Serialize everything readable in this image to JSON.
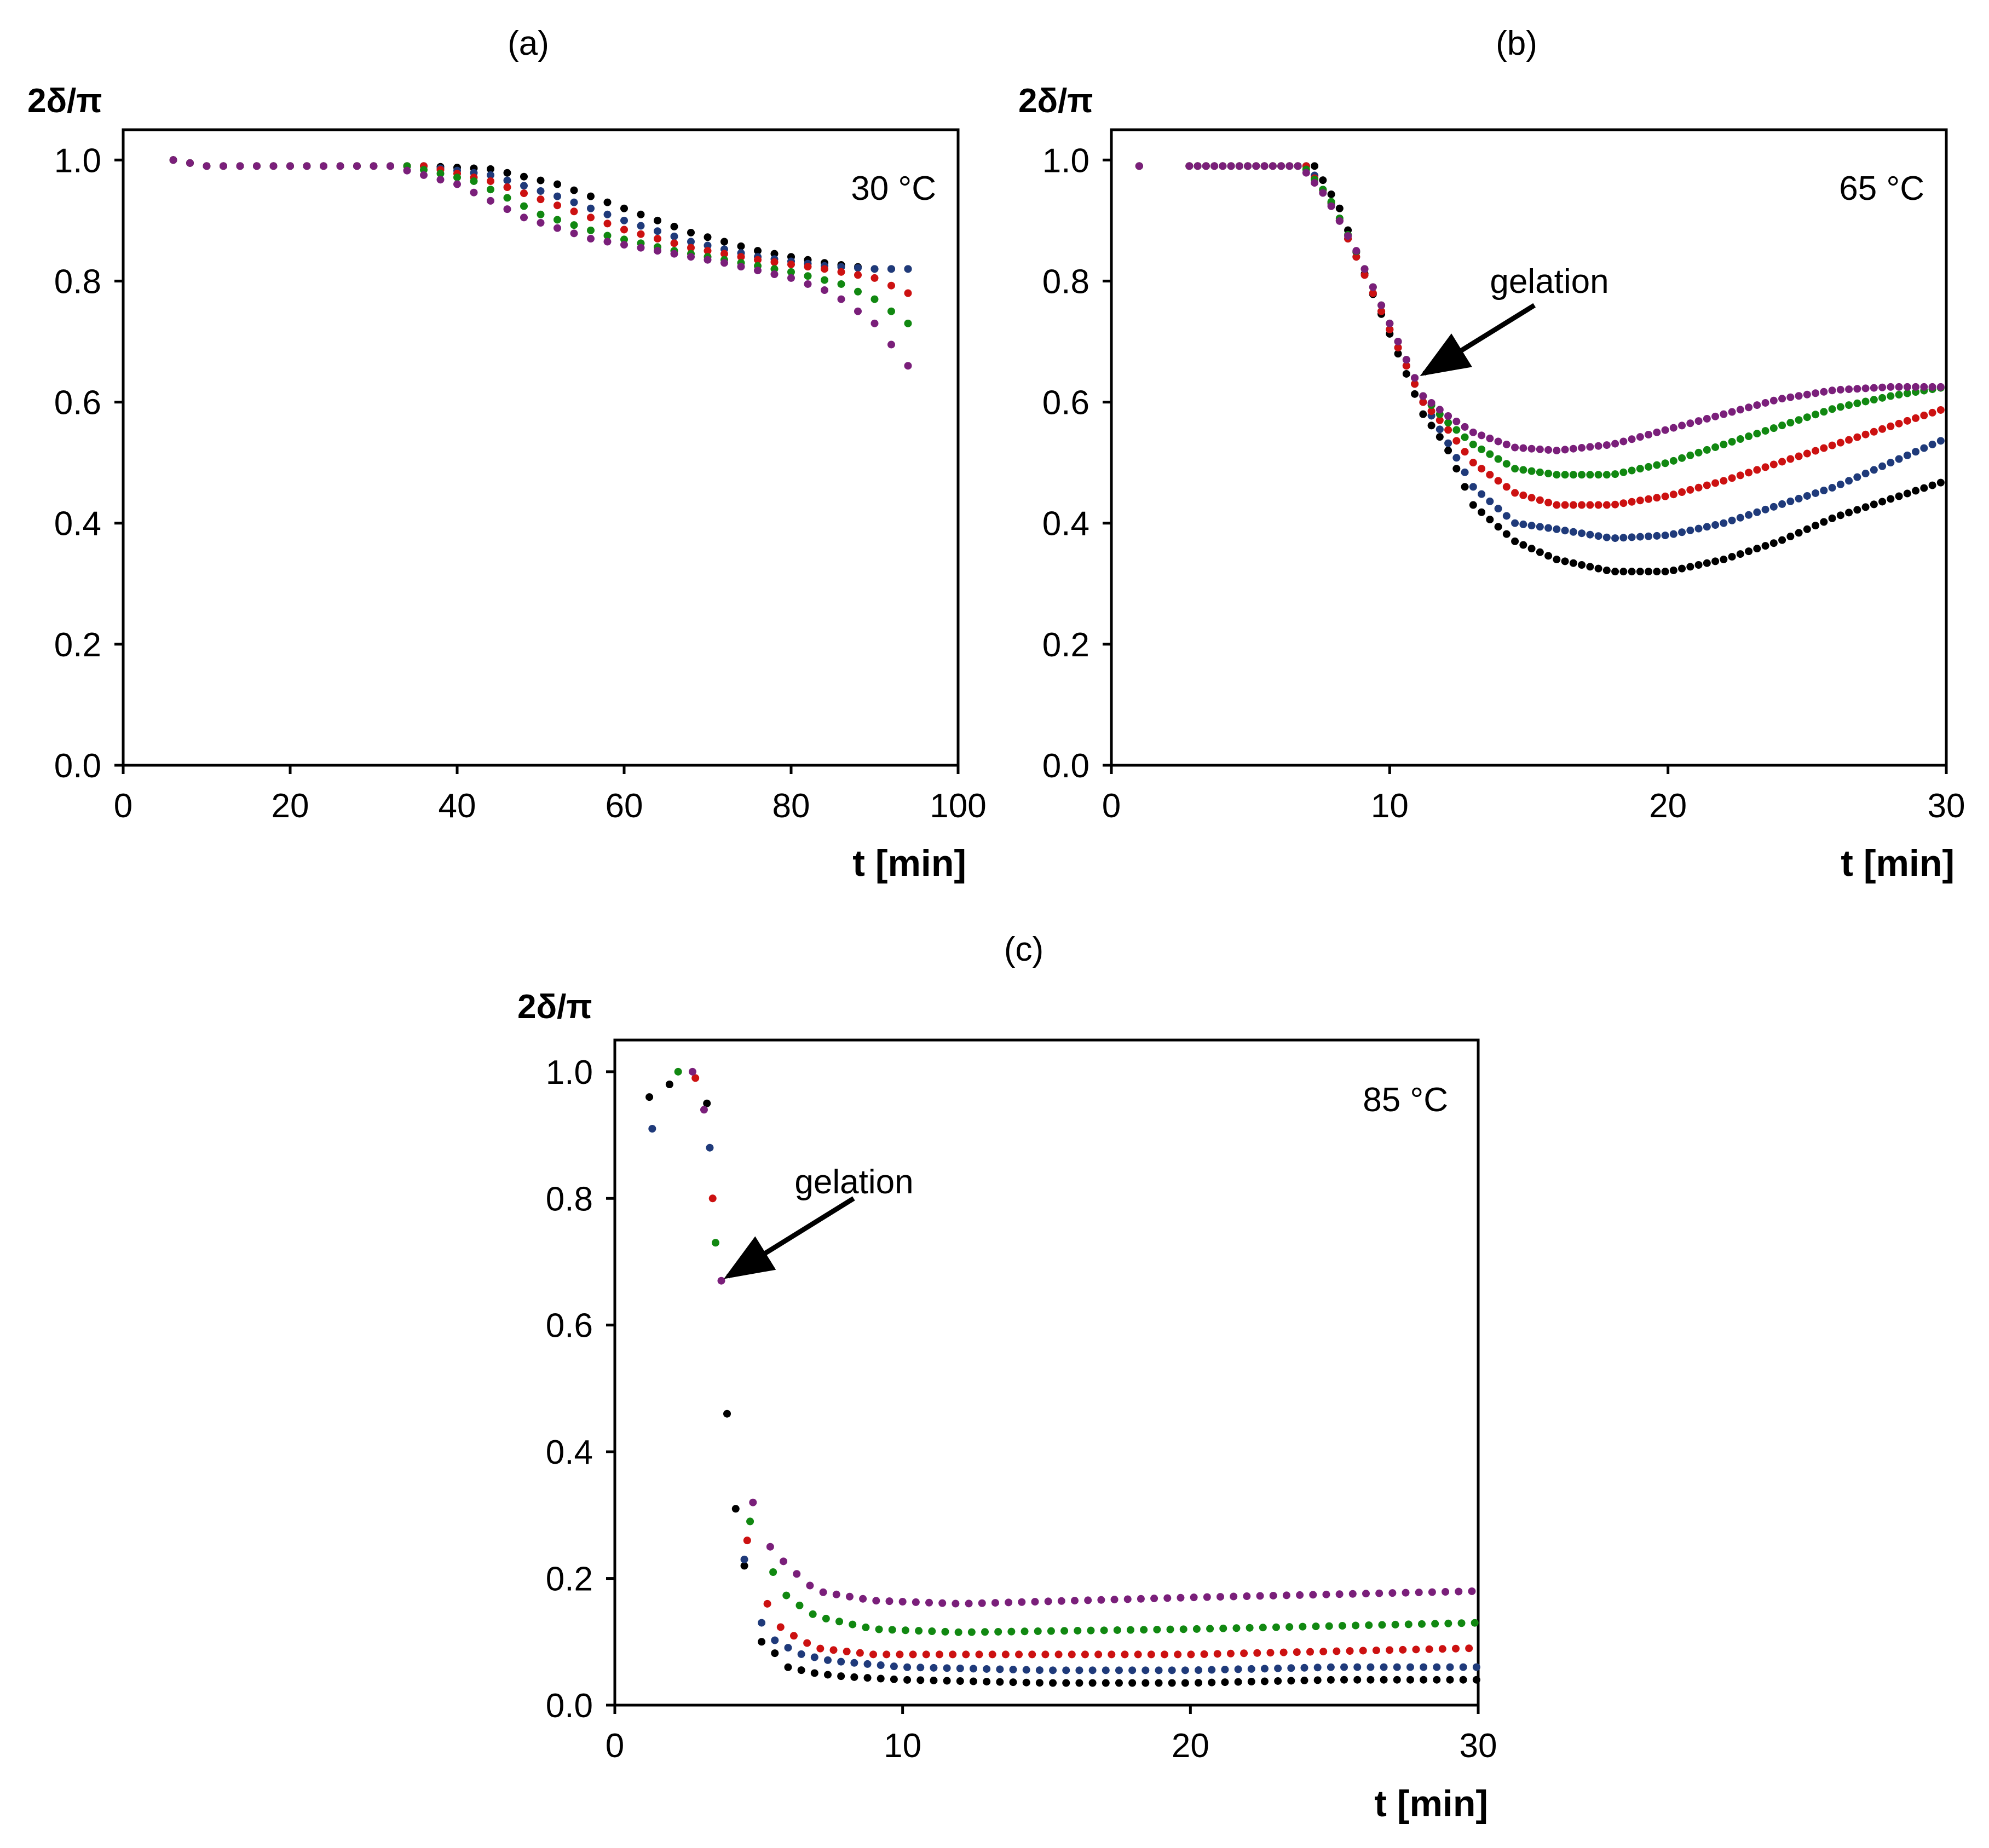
{
  "figure": {
    "panels": [
      "a",
      "b",
      "c"
    ]
  },
  "chart_data": [
    {
      "type": "scatter",
      "panel_label": "(a)",
      "ylabel": "2δ/π",
      "xlabel": "t [min]",
      "temperature": "30 °C",
      "xlim": [
        0,
        100
      ],
      "ylim": [
        0,
        1.05
      ],
      "xticks": [
        "0",
        "20",
        "40",
        "60",
        "80",
        "100"
      ],
      "yticks": [
        "0.0",
        "0.2",
        "0.4",
        "0.6",
        "0.8",
        "1.0"
      ],
      "xtick_values": [
        0,
        20,
        40,
        60,
        80,
        100
      ],
      "ytick_values": [
        0,
        0.2,
        0.4,
        0.6,
        0.8,
        1.0
      ],
      "series_params": {
        "t_start": 6,
        "t_end": 95,
        "step": 2
      },
      "series": [
        {
          "name": "black",
          "color": "#000000",
          "points": [
            [
              6,
              1.0
            ],
            [
              10,
              0.99
            ],
            [
              36,
              0.99
            ],
            [
              44,
              0.985
            ],
            [
              52,
              0.96
            ],
            [
              60,
              0.92
            ],
            [
              68,
              0.88
            ],
            [
              76,
              0.85
            ],
            [
              84,
              0.83
            ],
            [
              90,
              0.82
            ],
            [
              94,
              0.82
            ]
          ]
        },
        {
          "name": "navy",
          "color": "#1f3a7a",
          "points": [
            [
              6,
              1.0
            ],
            [
              10,
              0.99
            ],
            [
              36,
              0.99
            ],
            [
              44,
              0.975
            ],
            [
              52,
              0.94
            ],
            [
              60,
              0.9
            ],
            [
              68,
              0.865
            ],
            [
              76,
              0.84
            ],
            [
              84,
              0.825
            ],
            [
              90,
              0.82
            ],
            [
              95,
              0.82
            ]
          ]
        },
        {
          "name": "red",
          "color": "#cc1111",
          "points": [
            [
              6,
              1.0
            ],
            [
              10,
              0.99
            ],
            [
              36,
              0.99
            ],
            [
              44,
              0.965
            ],
            [
              52,
              0.925
            ],
            [
              60,
              0.885
            ],
            [
              68,
              0.855
            ],
            [
              76,
              0.835
            ],
            [
              84,
              0.82
            ],
            [
              90,
              0.805
            ],
            [
              94,
              0.78
            ]
          ]
        },
        {
          "name": "green",
          "color": "#118811",
          "points": [
            [
              6,
              1.0
            ],
            [
              10,
              0.99
            ],
            [
              34,
              0.99
            ],
            [
              42,
              0.965
            ],
            [
              50,
              0.91
            ],
            [
              58,
              0.875
            ],
            [
              66,
              0.85
            ],
            [
              74,
              0.83
            ],
            [
              80,
              0.815
            ],
            [
              86,
              0.795
            ],
            [
              90,
              0.77
            ],
            [
              94,
              0.73
            ]
          ]
        },
        {
          "name": "purple",
          "color": "#7a1f7a",
          "points": [
            [
              6,
              1.0
            ],
            [
              10,
              0.99
            ],
            [
              32,
              0.99
            ],
            [
              40,
              0.96
            ],
            [
              48,
              0.905
            ],
            [
              56,
              0.87
            ],
            [
              64,
              0.85
            ],
            [
              72,
              0.83
            ],
            [
              80,
              0.805
            ],
            [
              85,
              0.78
            ],
            [
              90,
              0.73
            ],
            [
              94,
              0.66
            ]
          ]
        }
      ]
    },
    {
      "type": "scatter",
      "panel_label": "(b)",
      "ylabel": "2δ/π",
      "xlabel": "t [min]",
      "temperature": "65 °C",
      "annotation": "gelation",
      "annotation_target": [
        11.0,
        0.64
      ],
      "annotation_from": [
        15.2,
        0.76
      ],
      "xlim": [
        0,
        30
      ],
      "ylim": [
        0,
        1.05
      ],
      "xticks": [
        "0",
        "10",
        "20",
        "30"
      ],
      "yticks": [
        "0.0",
        "0.2",
        "0.4",
        "0.6",
        "0.8",
        "1.0"
      ],
      "xtick_values": [
        0,
        10,
        20,
        30
      ],
      "ytick_values": [
        0,
        0.2,
        0.4,
        0.6,
        0.8,
        1.0
      ],
      "series_params": {
        "t_start": 1,
        "t_end": 30,
        "step": 0.3,
        "gap": [
          1.2,
          2.8
        ]
      },
      "series": [
        {
          "name": "black",
          "color": "#000000",
          "points": [
            [
              1,
              0.99
            ],
            [
              3,
              0.99
            ],
            [
              7.3,
              0.99
            ],
            [
              8.2,
              0.92
            ],
            [
              9.2,
              0.8
            ],
            [
              10.3,
              0.68
            ],
            [
              11.2,
              0.58
            ],
            [
              12,
              0.53
            ],
            [
              13,
              0.43
            ],
            [
              14.5,
              0.37
            ],
            [
              16,
              0.34
            ],
            [
              18,
              0.32
            ],
            [
              20,
              0.32
            ],
            [
              22,
              0.34
            ],
            [
              24,
              0.37
            ],
            [
              26,
              0.41
            ],
            [
              28,
              0.44
            ],
            [
              30,
              0.47
            ]
          ]
        },
        {
          "name": "navy",
          "color": "#1f3a7a",
          "points": [
            [
              1,
              0.99
            ],
            [
              3,
              0.99
            ],
            [
              7.1,
              0.99
            ],
            [
              8,
              0.92
            ],
            [
              9,
              0.82
            ],
            [
              10.2,
              0.7
            ],
            [
              11.2,
              0.6
            ],
            [
              12,
              0.54
            ],
            [
              13,
              0.46
            ],
            [
              14.5,
              0.4
            ],
            [
              16,
              0.39
            ],
            [
              18,
              0.375
            ],
            [
              20,
              0.38
            ],
            [
              22,
              0.4
            ],
            [
              24,
              0.43
            ],
            [
              26,
              0.46
            ],
            [
              28,
              0.5
            ],
            [
              30,
              0.54
            ]
          ]
        },
        {
          "name": "red",
          "color": "#cc1111",
          "points": [
            [
              1,
              0.99
            ],
            [
              3,
              0.99
            ],
            [
              7,
              0.99
            ],
            [
              7.9,
              0.93
            ],
            [
              9,
              0.82
            ],
            [
              10.2,
              0.7
            ],
            [
              11.2,
              0.6
            ],
            [
              12,
              0.56
            ],
            [
              13,
              0.5
            ],
            [
              14.5,
              0.45
            ],
            [
              16,
              0.43
            ],
            [
              18,
              0.43
            ],
            [
              20,
              0.445
            ],
            [
              22,
              0.47
            ],
            [
              24,
              0.5
            ],
            [
              26,
              0.53
            ],
            [
              28,
              0.56
            ],
            [
              30,
              0.59
            ]
          ]
        },
        {
          "name": "green",
          "color": "#118811",
          "points": [
            [
              1,
              0.99
            ],
            [
              3,
              0.99
            ],
            [
              6.9,
              0.99
            ],
            [
              7.8,
              0.94
            ],
            [
              8.9,
              0.84
            ],
            [
              10.1,
              0.72
            ],
            [
              11.2,
              0.61
            ],
            [
              12,
              0.57
            ],
            [
              13,
              0.53
            ],
            [
              14.5,
              0.49
            ],
            [
              16,
              0.48
            ],
            [
              18,
              0.48
            ],
            [
              20,
              0.5
            ],
            [
              22,
              0.53
            ],
            [
              24,
              0.56
            ],
            [
              26,
              0.59
            ],
            [
              28,
              0.61
            ],
            [
              30,
              0.625
            ]
          ]
        },
        {
          "name": "purple",
          "color": "#7a1f7a",
          "points": [
            [
              1,
              0.99
            ],
            [
              3,
              0.99
            ],
            [
              6.8,
              0.99
            ],
            [
              7.7,
              0.94
            ],
            [
              8.8,
              0.85
            ],
            [
              10,
              0.73
            ],
            [
              11.2,
              0.61
            ],
            [
              12,
              0.58
            ],
            [
              13,
              0.55
            ],
            [
              14.5,
              0.525
            ],
            [
              16,
              0.52
            ],
            [
              18,
              0.53
            ],
            [
              20,
              0.555
            ],
            [
              22,
              0.58
            ],
            [
              24,
              0.605
            ],
            [
              26,
              0.62
            ],
            [
              28,
              0.625
            ],
            [
              30,
              0.625
            ]
          ]
        }
      ]
    },
    {
      "type": "scatter",
      "panel_label": "(c)",
      "ylabel": "2δ/π",
      "xlabel": "t [min]",
      "temperature": "85 °C",
      "annotation": "gelation",
      "annotation_target": [
        3.7,
        0.67
      ],
      "annotation_from": [
        8.3,
        0.8
      ],
      "xlim": [
        0,
        30
      ],
      "ylim": [
        0,
        1.05
      ],
      "xticks": [
        "0",
        "10",
        "20",
        "30"
      ],
      "yticks": [
        "0.0",
        "0.2",
        "0.4",
        "0.6",
        "0.8",
        "1.0"
      ],
      "xtick_values": [
        0,
        10,
        20,
        30
      ],
      "ytick_values": [
        0,
        0.2,
        0.4,
        0.6,
        0.8,
        1.0
      ],
      "series": [
        {
          "name": "black",
          "color": "#000000",
          "scatter": [
            [
              1.2,
              0.96
            ],
            [
              1.9,
              0.98
            ],
            [
              3.2,
              0.95
            ],
            [
              3.9,
              0.46
            ],
            [
              4.2,
              0.31
            ],
            [
              4.5,
              0.22
            ]
          ],
          "tail": {
            "points": [
              [
                5.2,
                0.1
              ],
              [
                6,
                0.06
              ],
              [
                7,
                0.05
              ],
              [
                8,
                0.045
              ],
              [
                10,
                0.04
              ],
              [
                15,
                0.035
              ],
              [
                20,
                0.035
              ],
              [
                25,
                0.04
              ],
              [
                30,
                0.04
              ]
            ],
            "start": 5.1,
            "end": 30,
            "step": 0.46
          }
        },
        {
          "name": "navy",
          "color": "#1f3a7a",
          "scatter": [
            [
              1.3,
              0.91
            ],
            [
              3.3,
              0.88
            ],
            [
              4.5,
              0.23
            ]
          ],
          "tail": {
            "points": [
              [
                5.1,
                0.13
              ],
              [
                5.6,
                0.1
              ],
              [
                6.5,
                0.08
              ],
              [
                7.5,
                0.07
              ],
              [
                10,
                0.06
              ],
              [
                15,
                0.055
              ],
              [
                20,
                0.055
              ],
              [
                25,
                0.06
              ],
              [
                30,
                0.06
              ]
            ],
            "start": 5.1,
            "end": 30,
            "step": 0.46
          }
        },
        {
          "name": "red",
          "color": "#cc1111",
          "scatter": [
            [
              2.8,
              0.99
            ],
            [
              3.4,
              0.8
            ],
            [
              4.6,
              0.26
            ]
          ],
          "tail": {
            "points": [
              [
                5.3,
                0.16
              ],
              [
                5.8,
                0.12
              ],
              [
                7,
                0.09
              ],
              [
                9,
                0.08
              ],
              [
                15,
                0.08
              ],
              [
                20,
                0.08
              ],
              [
                25,
                0.085
              ],
              [
                30,
                0.09
              ]
            ],
            "start": 5.3,
            "end": 30,
            "step": 0.46
          }
        },
        {
          "name": "green",
          "color": "#118811",
          "scatter": [
            [
              2.2,
              1.0
            ],
            [
              3.5,
              0.73
            ],
            [
              4.7,
              0.29
            ]
          ],
          "tail": {
            "points": [
              [
                5.5,
                0.21
              ],
              [
                6,
                0.17
              ],
              [
                7,
                0.14
              ],
              [
                9,
                0.12
              ],
              [
                12,
                0.115
              ],
              [
                20,
                0.12
              ],
              [
                25,
                0.125
              ],
              [
                30,
                0.13
              ]
            ],
            "start": 5.5,
            "end": 30,
            "step": 0.46
          }
        },
        {
          "name": "purple",
          "color": "#7a1f7a",
          "scatter": [
            [
              2.7,
              1.0
            ],
            [
              3.1,
              0.94
            ],
            [
              3.7,
              0.67
            ],
            [
              4.8,
              0.32
            ]
          ],
          "tail": {
            "points": [
              [
                5.4,
                0.25
              ],
              [
                6,
                0.22
              ],
              [
                7,
                0.18
              ],
              [
                9,
                0.165
              ],
              [
                12,
                0.16
              ],
              [
                20,
                0.17
              ],
              [
                25,
                0.175
              ],
              [
                30,
                0.18
              ]
            ],
            "start": 5.4,
            "end": 30,
            "step": 0.46
          }
        }
      ]
    }
  ]
}
